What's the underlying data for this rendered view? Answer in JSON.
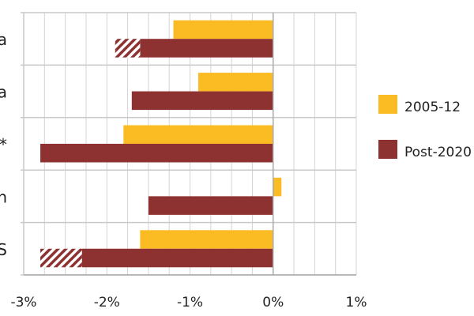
{
  "chart_data": {
    "type": "bar",
    "orientation": "horizontal",
    "categories": [
      "a",
      "a",
      "*",
      "n",
      "S"
    ],
    "series": [
      {
        "name": "2005-12",
        "color": "#FBBB22",
        "values": [
          -1.2,
          -0.9,
          -1.8,
          0.1,
          -1.6
        ]
      },
      {
        "name": "Post-2020",
        "color": "#8E3131",
        "values": [
          -1.6,
          -1.7,
          -2.8,
          -1.5,
          -2.3
        ],
        "hatched_extension": [
          -1.9,
          null,
          null,
          null,
          -2.8
        ]
      }
    ],
    "xlim": [
      -3,
      1
    ],
    "x_ticks": [
      "-3%",
      "-2%",
      "-1%",
      "0%",
      "1%"
    ],
    "x_tick_values": [
      -3,
      -2,
      -1,
      0,
      1
    ],
    "minor_grid_step": 0.25,
    "grid": true,
    "legend_position": "right",
    "title": "",
    "xlabel": "",
    "ylabel": ""
  }
}
